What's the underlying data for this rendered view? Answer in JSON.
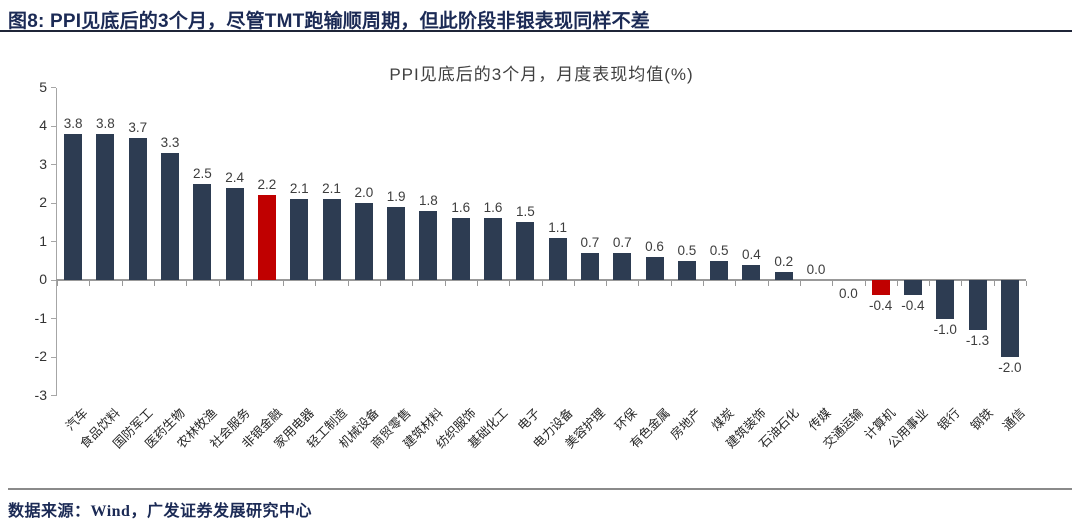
{
  "page": {
    "header": {
      "title": "图8:  PPI见底后的3个月，尽管TMT跑输顺周期，但此阶段非银表现同样不差"
    },
    "footer": {
      "source": "数据来源：Wind，广发证券发展研究中心"
    }
  },
  "chart_data": {
    "type": "bar",
    "title": "PPI见底后的3个月，月度表现均值(%)",
    "xlabel": "",
    "ylabel": "",
    "ylim": [
      -3,
      5
    ],
    "yticks": [
      5,
      4,
      3,
      2,
      1,
      0,
      -1,
      -2,
      -3
    ],
    "grid": false,
    "legend_position": "none",
    "bar_color": "#2d3c52",
    "highlight_color": "#c00000",
    "axis_color": "#a6a6a6",
    "zero_line_color": "#999999",
    "highlight_indices": [
      6,
      25
    ],
    "labels_below_indices": [
      24,
      25,
      26,
      27,
      28,
      29
    ],
    "categories": [
      "汽车",
      "食品饮料",
      "国防军工",
      "医药生物",
      "农林牧渔",
      "社会服务",
      "非银金融",
      "家用电器",
      "轻工制造",
      "机械设备",
      "商贸零售",
      "建筑材料",
      "纺织服饰",
      "基础化工",
      "电子",
      "电力设备",
      "美容护理",
      "环保",
      "有色金属",
      "房地产",
      "煤炭",
      "建筑装饰",
      "石油石化",
      "传媒",
      "交通运输",
      "计算机",
      "公用事业",
      "银行",
      "钢铁",
      "通信"
    ],
    "values": [
      3.8,
      3.8,
      3.7,
      3.3,
      2.5,
      2.4,
      2.2,
      2.1,
      2.1,
      2.0,
      1.9,
      1.8,
      1.6,
      1.6,
      1.5,
      1.1,
      0.7,
      0.7,
      0.6,
      0.5,
      0.5,
      0.4,
      0.2,
      0.0,
      0.0,
      -0.4,
      -0.4,
      -1.0,
      -1.3,
      -2.0
    ]
  }
}
